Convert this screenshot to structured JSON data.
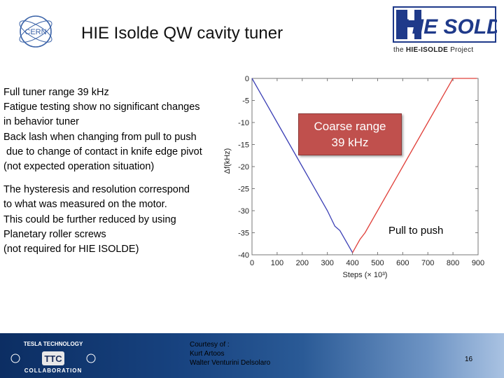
{
  "header": {
    "title": "HIE Isolde QW cavity tuner",
    "cern_logo_text": "CERN",
    "hie_logo": {
      "mark": "HIE SOLDE",
      "tag_prefix": "the ",
      "tag_bold": "HIE-ISOLDE",
      "tag_suffix": " Project"
    }
  },
  "bullets": {
    "lines_a": [
      "Full tuner range 39 kHz",
      "Fatigue testing show no significant changes",
      "in behavior tuner",
      "Back lash when changing from pull to push",
      " due to change of contact in knife edge pivot",
      "(not expected operation situation)"
    ],
    "lines_b": [
      "The hysteresis and resolution correspond",
      "to what was measured on the motor.",
      "This could be further reduced by using",
      "Planetary roller screws",
      "(not required for HIE ISOLDE)"
    ]
  },
  "callouts": {
    "coarse_line1": "Coarse range",
    "coarse_line2": "39 kHz",
    "pull_to_push": "Pull to push"
  },
  "chart_data": {
    "type": "line",
    "xlabel": "Steps (× 10³)",
    "ylabel": "Δf(kHz)",
    "xlim": [
      0,
      900
    ],
    "ylim": [
      -40,
      0
    ],
    "x_ticks": [
      0,
      100,
      200,
      300,
      400,
      500,
      600,
      700,
      800,
      900
    ],
    "y_ticks": [
      0,
      -5,
      -10,
      -15,
      -20,
      -25,
      -30,
      -35,
      -40
    ],
    "grid": false,
    "series": [
      {
        "name": "",
        "color": "#3b3fb5",
        "x": [
          0,
          100,
          200,
          300,
          330,
          350,
          400
        ],
        "y": [
          0,
          -10,
          -20,
          -30,
          -33.5,
          -34.5,
          -39.5
        ]
      },
      {
        "name": "",
        "color": "#e0403a",
        "x": [
          400,
          430,
          450,
          500,
          600,
          700,
          800,
          870,
          895
        ],
        "y": [
          -39.5,
          -36.5,
          -35,
          -30,
          -20,
          -10,
          0,
          0,
          0
        ]
      }
    ]
  },
  "footer": {
    "ttc_top": "TESLA TECHNOLOGY",
    "ttc_mid": "TTC",
    "ttc_bottom": "COLLABORATION",
    "courtesy_lines": [
      "Courtesy of :",
      "Kurt Artoos",
      "Walter Venturini Delsolaro"
    ],
    "page_number": "16"
  }
}
